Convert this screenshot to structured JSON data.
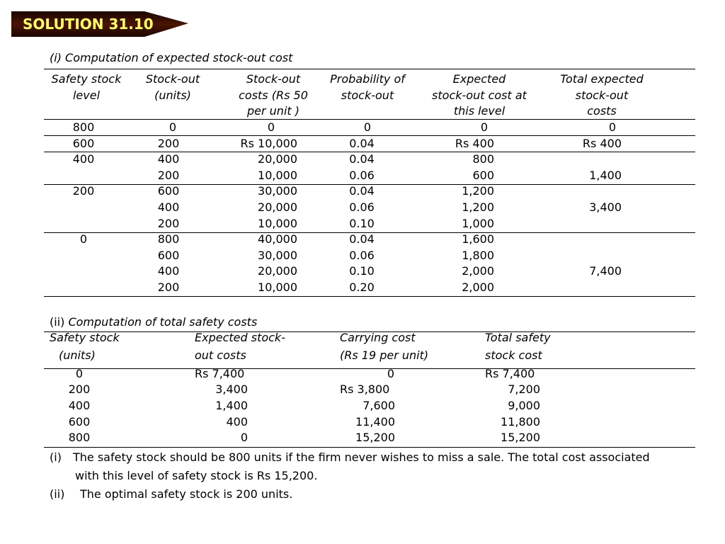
{
  "banner": {
    "title": "SOLUTION 31.10",
    "fill_color": "#3a0e00",
    "text_color": "#ffff66"
  },
  "table1": {
    "caption": "(i) Computation of expected stock-out cost",
    "headers": [
      [
        "Safety stock",
        "level",
        ""
      ],
      [
        "Stock-out",
        "(units)",
        ""
      ],
      [
        "Stock-out",
        "costs (Rs 50",
        "per unit )"
      ],
      [
        "Probability of",
        "stock-out",
        ""
      ],
      [
        "Expected",
        "stock-out cost at",
        "this level"
      ],
      [
        "Total expected",
        "stock-out",
        "costs"
      ]
    ],
    "rows": [
      [
        "800",
        "0",
        "0",
        "0",
        "0",
        "0"
      ],
      [
        "600",
        "200",
        "Rs 10,000",
        "0.04",
        "Rs 400",
        "Rs 400"
      ],
      [
        "400",
        "400",
        "20,000",
        "0.04",
        "800",
        ""
      ],
      [
        "",
        "200",
        "10,000",
        "0.06",
        "600",
        "1,400"
      ],
      [
        "200",
        "600",
        "30,000",
        "0.04",
        "1,200",
        ""
      ],
      [
        "",
        "400",
        "20,000",
        "0.06",
        "1,200",
        "3,400"
      ],
      [
        "",
        "200",
        "10,000",
        "0.10",
        "1,000",
        ""
      ],
      [
        "0",
        "800",
        "40,000",
        "0.04",
        "1,600",
        ""
      ],
      [
        "",
        "600",
        "30,000",
        "0.06",
        "1,800",
        ""
      ],
      [
        "",
        "400",
        "20,000",
        "0.10",
        "2,000",
        "7,400"
      ],
      [
        "",
        "200",
        "10,000",
        "0.20",
        "2,000",
        ""
      ]
    ]
  },
  "table2": {
    "caption_prefix": "(ii) ",
    "caption": "Computation of total safety costs",
    "headers": [
      [
        "Safety stock",
        "(units)"
      ],
      [
        "Expected stock-",
        "out costs"
      ],
      [
        "Carrying cost",
        "(Rs 19 per unit)"
      ],
      [
        "Total safety",
        "stock cost"
      ]
    ],
    "rows": [
      [
        "0",
        "Rs 7,400",
        "0",
        "Rs 7,400"
      ],
      [
        "200",
        "3,400",
        "Rs 3,800",
        "7,200"
      ],
      [
        "400",
        "1,400",
        "7,600",
        "9,000"
      ],
      [
        "600",
        "400",
        "11,400",
        "11,800"
      ],
      [
        "800",
        "0",
        "15,200",
        "15,200"
      ]
    ]
  },
  "notes": {
    "n1_marker": "(i)",
    "n1_line1": "The safety stock should be 800 units if the firm never wishes to miss a sale. The total cost associated",
    "n1_line2": "with this level of safety stock is Rs 15,200.",
    "n2_marker": "(ii)",
    "n2_text": "The optimal safety stock is 200 units."
  }
}
